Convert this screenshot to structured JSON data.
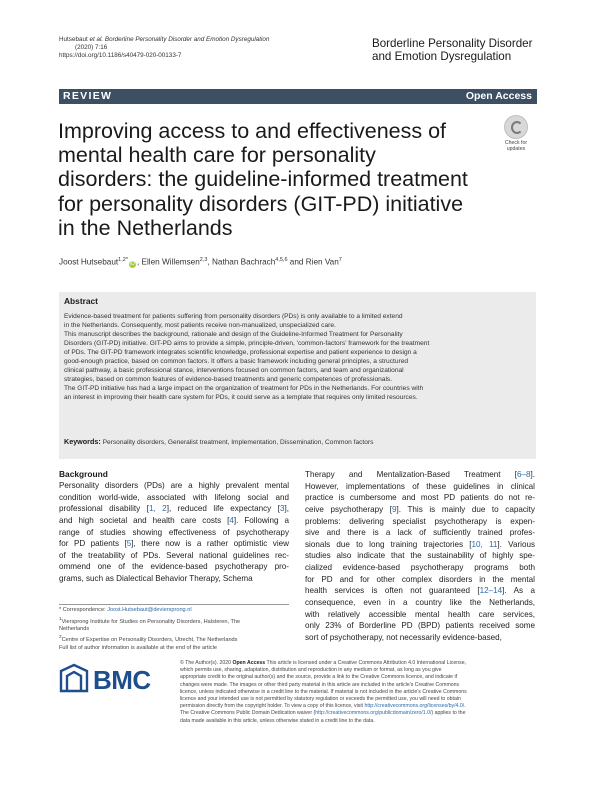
{
  "header": {
    "citation_author": "Hutsebaut",
    "citation_etal": "et al.",
    "citation_journal": "Borderline Personality Disorder and Emotion Dysregulation",
    "citation_volume": "(2020) 7:16",
    "citation_doi": "https://doi.org/10.1186/s40479-020-00133-7",
    "journal_line1": "Borderline Personality Disorder",
    "journal_line2": "and Emotion Dysregulation"
  },
  "banner": {
    "type": "REVIEW",
    "access": "Open Access"
  },
  "title_lines": [
    "Improving access to and effectiveness of",
    "mental health care for personality",
    "disorders: the guideline-informed treatment",
    "for personality disorders (GIT-PD) initiative",
    "in the Netherlands"
  ],
  "check_updates": {
    "line1": "Check for",
    "line2": "updates"
  },
  "authors": [
    {
      "name": "Joost Hutsebaut",
      "sup": "1,2*",
      "orcid": true,
      "sep": ", "
    },
    {
      "name": "Ellen Willemsen",
      "sup": "2,3",
      "orcid": false,
      "sep": ", "
    },
    {
      "name": "Nathan Bachrach",
      "sup": "4,5,6",
      "orcid": false,
      "sep": " and "
    },
    {
      "name": "Rien Van",
      "sup": "7",
      "orcid": false,
      "sep": ""
    }
  ],
  "abstract": {
    "heading": "Abstract",
    "lines": [
      "Evidence-based treatment for patients suffering from personality disorders (PDs) is only available to a limited extend",
      "in the Netherlands. Consequently, most patients receive non-manualized, unspecialized care.",
      "This manuscript describes the background, rationale and design of the Guideline-Informed Treatment for Personality",
      "Disorders (GIT-PD) initiative. GIT-PD aims to provide a simple, principle-driven, 'common-factors' framework for the treatment",
      "of PDs. The GIT-PD framework integrates scientific knowledge, professional expertise and patient experience to design a",
      "good-enough practice, based on common factors. It offers a basic framework including general principles, a structured",
      "clinical pathway, a basic professional stance, interventions focused on common factors, and team and organizational",
      "strategies, based on common features of evidence-based treatments and generic competences of professionals.",
      "The GIT-PD initiative has had a large impact on the organization of treatment for PDs in the Netherlands. For countries with",
      "an interest in improving their health care system for PDs, it could serve as a template that requires only limited resources."
    ],
    "keywords_label": "Keywords:",
    "keywords": "Personality disorders, Generalist treatment, Implementation, Dissemination, Common factors"
  },
  "body": {
    "heading": "Background",
    "left_lines": [
      "Personality disorders (PDs) are a highly prevalent mental",
      "condition world-wide, associated with lifelong social and",
      "professional disability [1, 2], reduced life expectancy [3],",
      "and high societal and health care costs [4]. Following a",
      "range of studies showing effectiveness of psychotherapy",
      "for PD patients [5], there now is a rather optimistic view",
      "of the treatability of PDs. Several national guidelines rec-",
      "ommend one of the evidence-based psychotherapy pro-",
      "grams, such as Dialectical Behavior Therapy, Schema"
    ],
    "right_lines": [
      "Therapy and Mentalization-Based Treatment [6–8].",
      "However, implementations of these guidelines in clinical",
      "practice is cumbersome and most PD patients do not re-",
      "ceive psychotherapy [9]. This is mainly due to capacity",
      "problems: delivering specialist psychotherapy is expen-",
      "sive and there is a lack of sufficiently trained profes-",
      "sionals due to long training trajectories [10, 11]. Various",
      "studies also indicate that the sustainability of highly spe-",
      "cialized evidence-based psychotherapy programs both",
      "for PD and for other complex disorders in the mental",
      "health services is often not guaranteed [12–14]. As a",
      "consequence, even in a country like the Netherlands,",
      "with relatively accessible mental health care services,",
      "only 23% of Borderline PD (BPD) patients received some",
      "sort of psychotherapy, not necessarily evidence-based,"
    ]
  },
  "footnotes": {
    "correspondence_label": "* Correspondence:",
    "email": "Joost.Hutsebaut@deviersprong.nl",
    "aff1_sup": "1",
    "aff1_a": "Viersprong Institute for Studies on Personality Disorders, Halsteren, The",
    "aff1_b": "Netherlands",
    "aff2_sup": "2",
    "aff2": "Centre of Expertise on Personality Disorders, Utrecht, The Netherlands",
    "full_list": "Full list of author information is available at the end of the article"
  },
  "publisher": {
    "name": "BMC",
    "brand_color": "#1f4e8c"
  },
  "license_lines": [
    "© The Author(s). 2020 Open Access This article is licensed under a Creative Commons Attribution 4.0 International License,",
    "which permits use, sharing, adaptation, distribution and reproduction in any medium or format, as long as you give",
    "appropriate credit to the original author(s) and the source, provide a link to the Creative Commons licence, and indicate if",
    "changes were made. The images or other third party material in this article are included in the article's Creative Commons",
    "licence, unless indicated otherwise in a credit line to the material. If material is not included in the article's Creative Commons",
    "licence and your intended use is not permitted by statutory regulation or exceeds the permitted use, you will need to obtain",
    "permission directly from the copyright holder. To view a copy of this licence, visit http://creativecommons.org/licenses/by/4.0/.",
    "The Creative Commons Public Domain Dedication waiver (http://creativecommons.org/publicdomain/zero/1.0/) applies to the",
    "data made available in this article, unless otherwise stated in a credit line to the data."
  ],
  "colors": {
    "banner": "#3d4f63",
    "link": "#2a6aa8",
    "abstract_bg": "#ebebeb",
    "orcid": "#a6ce39"
  }
}
